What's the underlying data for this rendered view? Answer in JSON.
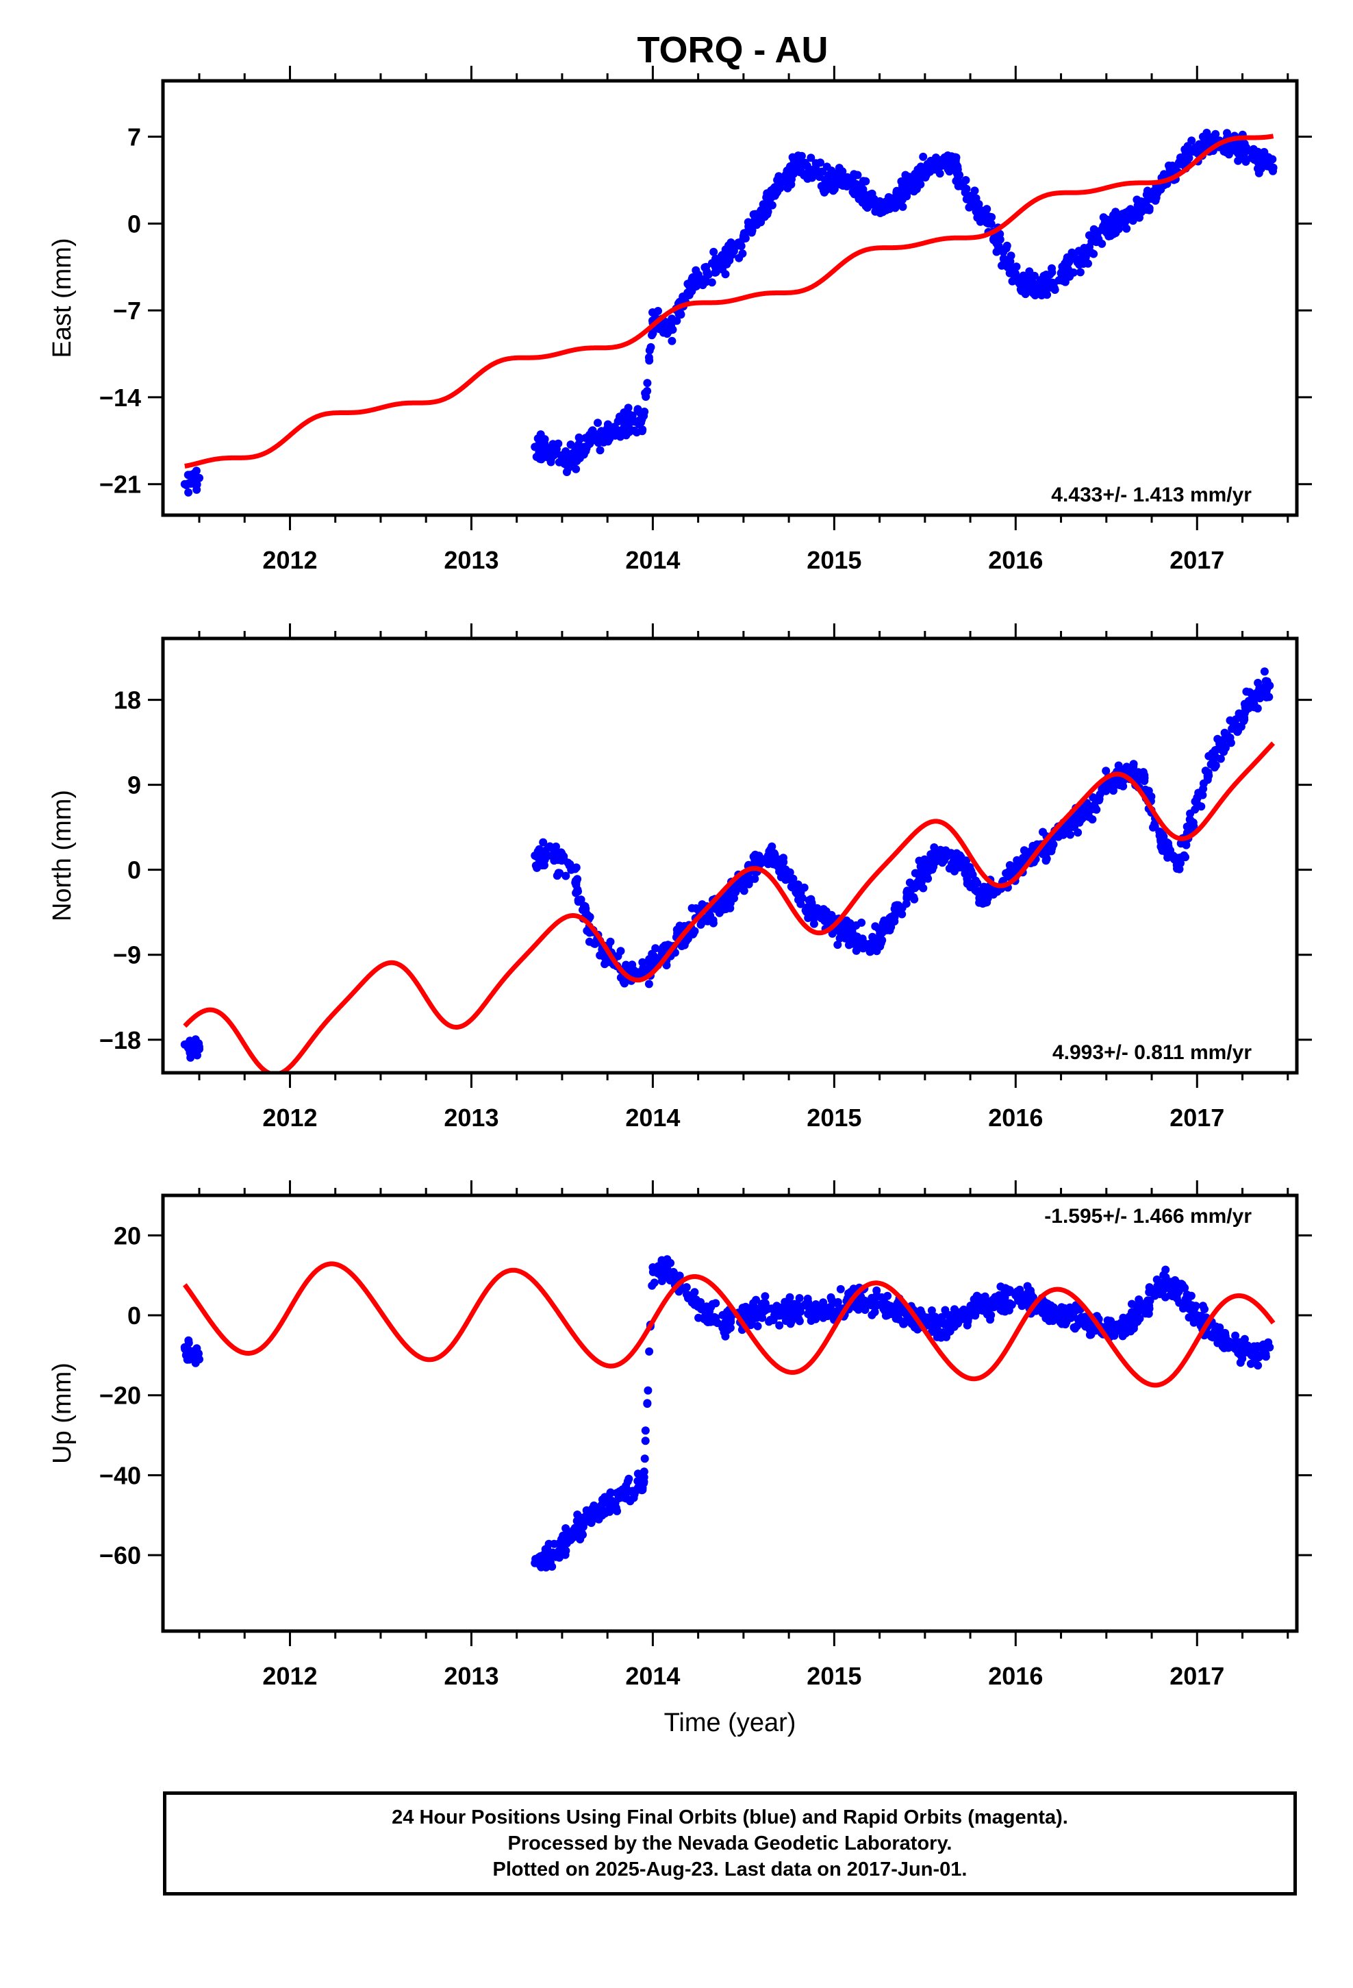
{
  "title": "TORQ - AU",
  "footer": {
    "line1": "24 Hour Positions Using Final Orbits (blue) and Rapid Orbits (magenta).",
    "line2": "Processed by the Nevada Geodetic Laboratory.",
    "line3": "Plotted on 2025-Aug-23. Last data on 2017-Jun-01."
  },
  "colors": {
    "data_points": "#0000ff",
    "model_fit": "#ff0000",
    "axes": "#000000"
  },
  "chart_data": [
    {
      "type": "scatter",
      "ylabel": "East (mm)",
      "xlabel": "",
      "xlim": [
        2011.3,
        2017.55
      ],
      "ylim": [
        -23.5,
        11.5
      ],
      "xticks": [
        "2012",
        "2013",
        "2014",
        "2015",
        "2016",
        "2017"
      ],
      "yticks": [
        -21,
        -14,
        -7,
        0,
        7
      ],
      "ytick_labels": [
        "−21",
        "−14",
        "−7",
        "0",
        "7"
      ],
      "rate": "4.433+/- 1.413 mm/yr",
      "rate_position": "bottom-right",
      "data_series": {
        "name": "Final Orbits",
        "x": [
          2011.42,
          2011.5,
          2013.35,
          2013.45,
          2013.55,
          2013.65,
          2013.75,
          2013.85,
          2013.95,
          2014.0,
          2014.1,
          2014.2,
          2014.3,
          2014.4,
          2014.5,
          2014.6,
          2014.7,
          2014.8,
          2014.9,
          2014.95,
          2015.05,
          2015.15,
          2015.25,
          2015.35,
          2015.45,
          2015.55,
          2015.65,
          2015.75,
          2015.85,
          2015.95,
          2016.05,
          2016.15,
          2016.25,
          2016.35,
          2016.45,
          2016.55,
          2016.65,
          2016.75,
          2016.85,
          2016.95,
          2017.05,
          2017.15,
          2017.25,
          2017.35,
          2017.42
        ],
        "y": [
          -21,
          -20.5,
          -18,
          -18.5,
          -19,
          -17.5,
          -17,
          -16,
          -15.5,
          -8,
          -8.5,
          -5,
          -4,
          -3,
          -1,
          1,
          3,
          5,
          4,
          3.5,
          3.5,
          2.5,
          1,
          2,
          3.5,
          5,
          5,
          2,
          0,
          -3,
          -5,
          -5,
          -4,
          -3,
          -1,
          0,
          1,
          2,
          4,
          5.5,
          6.5,
          6.5,
          6,
          5,
          4.5
        ]
      },
      "model_series": {
        "name": "Model",
        "rate": 4.433,
        "offset_at_2014": -8.2,
        "annual_amp": 0.7,
        "annual_phase": 0.0,
        "semiannual_amp": 0.3,
        "jump_year": 2013.95,
        "jump": 0.0
      }
    },
    {
      "type": "scatter",
      "ylabel": "North (mm)",
      "xlabel": "",
      "xlim": [
        2011.3,
        2017.55
      ],
      "ylim": [
        -21.5,
        24.5
      ],
      "xticks": [
        "2012",
        "2013",
        "2014",
        "2015",
        "2016",
        "2017"
      ],
      "yticks": [
        -18,
        -9,
        0,
        9,
        18
      ],
      "ytick_labels": [
        "−18",
        "−9",
        "0",
        "9",
        "18"
      ],
      "rate": "4.993+/- 0.811 mm/yr",
      "rate_position": "bottom-right",
      "data_series": {
        "name": "Final Orbits",
        "x": [
          2011.42,
          2011.5,
          2013.35,
          2013.45,
          2013.55,
          2013.65,
          2013.75,
          2013.85,
          2013.95,
          2014.05,
          2014.15,
          2014.25,
          2014.35,
          2014.45,
          2014.55,
          2014.65,
          2014.75,
          2014.85,
          2015.0,
          2015.1,
          2015.2,
          2015.3,
          2015.4,
          2015.5,
          2015.6,
          2015.7,
          2015.8,
          2015.9,
          2016.0,
          2016.1,
          2016.2,
          2016.3,
          2016.4,
          2016.5,
          2016.6,
          2016.7,
          2016.8,
          2016.9,
          2017.0,
          2017.1,
          2017.2,
          2017.3,
          2017.4
        ],
        "y": [
          -18.5,
          -19,
          1.5,
          1.5,
          0,
          -6,
          -9,
          -11,
          -11,
          -9,
          -7,
          -5,
          -4,
          -2,
          0,
          2,
          -1,
          -4,
          -6,
          -7,
          -8,
          -6,
          -3,
          0,
          2,
          1,
          -3,
          -2,
          0,
          2,
          3,
          5,
          6,
          9,
          10,
          10,
          3,
          1,
          7,
          12,
          15,
          18,
          19.5
        ]
      },
      "model_series": {
        "name": "Model",
        "rate": 4.993,
        "offset_at_2014": -6.8,
        "annual_amp": 4.1,
        "annual_phase": -1.45,
        "semiannual_amp": 0.8,
        "jump_year": 2013.95,
        "jump": 0.0
      }
    },
    {
      "type": "scatter",
      "ylabel": "Up (mm)",
      "xlabel": "Time (year)",
      "xlim": [
        2011.3,
        2017.55
      ],
      "ylim": [
        -79,
        30
      ],
      "xticks": [
        "2012",
        "2013",
        "2014",
        "2015",
        "2016",
        "2017"
      ],
      "yticks": [
        -60,
        -40,
        -20,
        0,
        20
      ],
      "ytick_labels": [
        "−60",
        "−40",
        "−20",
        "0",
        "20"
      ],
      "rate": "-1.595+/- 1.466 mm/yr",
      "rate_position": "top-right",
      "data_series": {
        "name": "Final Orbits",
        "x": [
          2011.42,
          2011.5,
          2013.35,
          2013.45,
          2013.55,
          2013.65,
          2013.75,
          2013.85,
          2013.95,
          2014.0,
          2014.1,
          2014.2,
          2014.3,
          2014.4,
          2014.5,
          2014.6,
          2014.7,
          2014.8,
          2014.9,
          2015.0,
          2015.1,
          2015.2,
          2015.3,
          2015.4,
          2015.5,
          2015.6,
          2015.7,
          2015.8,
          2015.9,
          2016.0,
          2016.1,
          2016.2,
          2016.3,
          2016.4,
          2016.5,
          2016.6,
          2016.7,
          2016.8,
          2016.9,
          2017.0,
          2017.1,
          2017.2,
          2017.3,
          2017.4
        ],
        "y": [
          -8,
          -11,
          -62,
          -60,
          -55,
          -50,
          -47,
          -45,
          -42,
          12,
          10,
          5,
          0,
          -2,
          0,
          1,
          0,
          2,
          1,
          0,
          5,
          3,
          2,
          0,
          -1,
          -2,
          -1,
          2,
          4,
          5,
          3,
          1,
          0,
          -2,
          -4,
          -3,
          2,
          8,
          6,
          0,
          -4,
          -8,
          -10,
          -8
        ]
      },
      "model_series": {
        "name": "Model",
        "rate": -1.595,
        "offset_at_2014": -1.5,
        "annual_amp": 11.5,
        "annual_phase": 0.0,
        "semiannual_amp": 0.6,
        "jump_year": 2013.95,
        "jump": 0.0
      }
    }
  ]
}
